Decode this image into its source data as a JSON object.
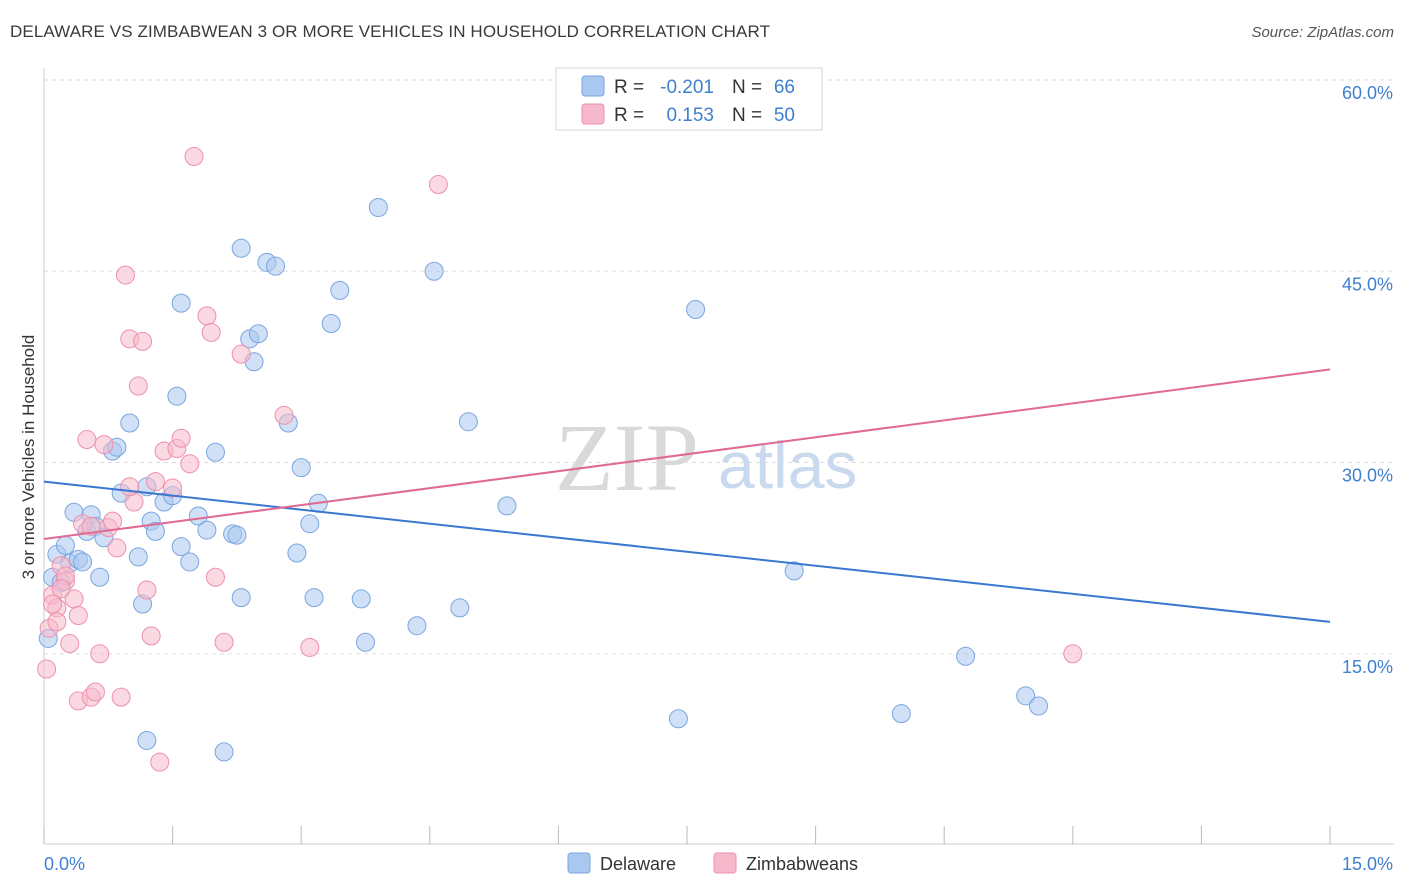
{
  "title": "DELAWARE VS ZIMBABWEAN 3 OR MORE VEHICLES IN HOUSEHOLD CORRELATION CHART",
  "source": "Source: ZipAtlas.com",
  "watermark": {
    "zip": "ZIP",
    "atlas": "atlas"
  },
  "legend": {
    "rows": [
      {
        "r_label": "R =",
        "r_value": "-0.201",
        "n_label": "N =",
        "n_value": "66",
        "color": "#a9c8f0"
      },
      {
        "r_label": "R =",
        "r_value": "0.153",
        "n_label": "N =",
        "n_value": "50",
        "color": "#f6b9cc"
      }
    ]
  },
  "chart_data": {
    "type": "scatter",
    "title": "DELAWARE VS ZIMBABWEAN 3 OR MORE VEHICLES IN HOUSEHOLD CORRELATION CHART",
    "xlabel": "",
    "ylabel": "3 or more Vehicles in Household",
    "xlim": [
      0,
      15
    ],
    "ylim": [
      0,
      62
    ],
    "x_tick_labels": [
      "0.0%",
      "15.0%"
    ],
    "y_tick_labels": [
      "15.0%",
      "30.0%",
      "45.0%",
      "60.0%"
    ],
    "y_ticks": [
      15,
      30,
      45,
      60
    ],
    "grid": true,
    "legend_position": "top-center",
    "series": [
      {
        "name": "Delaware",
        "color": "#a9c8f0",
        "stroke": "#7aa6df",
        "trend": {
          "x": [
            0,
            15
          ],
          "y": [
            28.5,
            17.5
          ],
          "color": "#3a78d0"
        },
        "points": [
          [
            0.05,
            16.2
          ],
          [
            0.1,
            21.0
          ],
          [
            0.15,
            22.8
          ],
          [
            0.2,
            20.6
          ],
          [
            0.25,
            23.5
          ],
          [
            0.3,
            22.1
          ],
          [
            0.35,
            26.1
          ],
          [
            0.4,
            22.4
          ],
          [
            0.45,
            22.2
          ],
          [
            0.5,
            24.6
          ],
          [
            0.55,
            25.9
          ],
          [
            0.6,
            25.0
          ],
          [
            0.7,
            24.1
          ],
          [
            0.8,
            30.9
          ],
          [
            0.85,
            31.2
          ],
          [
            0.9,
            27.6
          ],
          [
            1.0,
            33.1
          ],
          [
            1.1,
            22.6
          ],
          [
            1.15,
            18.9
          ],
          [
            1.2,
            28.1
          ],
          [
            1.25,
            25.4
          ],
          [
            1.3,
            24.6
          ],
          [
            1.4,
            26.9
          ],
          [
            1.5,
            27.4
          ],
          [
            1.55,
            35.2
          ],
          [
            1.6,
            23.4
          ],
          [
            1.7,
            22.2
          ],
          [
            1.8,
            25.8
          ],
          [
            1.9,
            24.7
          ],
          [
            2.0,
            30.8
          ],
          [
            2.2,
            24.4
          ],
          [
            2.25,
            24.3
          ],
          [
            2.3,
            19.4
          ],
          [
            2.4,
            39.7
          ],
          [
            2.45,
            37.9
          ],
          [
            2.5,
            40.1
          ],
          [
            2.6,
            45.7
          ],
          [
            2.7,
            45.4
          ],
          [
            2.85,
            33.1
          ],
          [
            2.95,
            22.9
          ],
          [
            3.0,
            29.6
          ],
          [
            3.1,
            25.2
          ],
          [
            3.15,
            19.4
          ],
          [
            3.2,
            26.8
          ],
          [
            3.35,
            40.9
          ],
          [
            3.45,
            43.5
          ],
          [
            3.7,
            19.3
          ],
          [
            3.75,
            15.9
          ],
          [
            3.9,
            50.0
          ],
          [
            4.35,
            17.2
          ],
          [
            4.55,
            45.0
          ],
          [
            4.85,
            18.6
          ],
          [
            4.95,
            33.2
          ],
          [
            5.4,
            26.6
          ],
          [
            7.4,
            9.9
          ],
          [
            7.6,
            42.0
          ],
          [
            8.75,
            21.5
          ],
          [
            10.0,
            10.3
          ],
          [
            10.75,
            14.8
          ],
          [
            11.45,
            11.7
          ],
          [
            11.6,
            10.9
          ],
          [
            1.6,
            42.5
          ],
          [
            1.2,
            8.2
          ],
          [
            2.1,
            7.3
          ],
          [
            2.3,
            46.8
          ],
          [
            0.65,
            21.0
          ]
        ]
      },
      {
        "name": "Zimbabweans",
        "color": "#f6b9cc",
        "stroke": "#ee90ad",
        "trend": {
          "x": [
            0,
            15
          ],
          "y": [
            24.0,
            37.3
          ],
          "color": "#e06a93"
        },
        "points": [
          [
            0.03,
            13.8
          ],
          [
            0.06,
            17.0
          ],
          [
            0.1,
            19.6
          ],
          [
            0.15,
            18.6
          ],
          [
            0.2,
            21.9
          ],
          [
            0.25,
            20.7
          ],
          [
            0.3,
            15.8
          ],
          [
            0.35,
            19.3
          ],
          [
            0.4,
            11.3
          ],
          [
            0.45,
            25.2
          ],
          [
            0.5,
            31.8
          ],
          [
            0.55,
            11.6
          ],
          [
            0.6,
            12.0
          ],
          [
            0.65,
            15.0
          ],
          [
            0.7,
            31.4
          ],
          [
            0.75,
            24.9
          ],
          [
            0.8,
            25.4
          ],
          [
            0.85,
            23.3
          ],
          [
            0.9,
            11.6
          ],
          [
            0.95,
            44.7
          ],
          [
            1.0,
            39.7
          ],
          [
            1.05,
            26.9
          ],
          [
            1.1,
            36.0
          ],
          [
            1.15,
            39.5
          ],
          [
            1.2,
            20.0
          ],
          [
            1.25,
            16.4
          ],
          [
            1.3,
            28.5
          ],
          [
            1.35,
            6.5
          ],
          [
            1.4,
            30.9
          ],
          [
            1.5,
            28.0
          ],
          [
            1.55,
            31.1
          ],
          [
            1.6,
            31.9
          ],
          [
            1.7,
            29.9
          ],
          [
            1.75,
            54.0
          ],
          [
            1.9,
            41.5
          ],
          [
            1.95,
            40.2
          ],
          [
            2.0,
            21.0
          ],
          [
            2.1,
            15.9
          ],
          [
            2.3,
            38.5
          ],
          [
            2.8,
            33.7
          ],
          [
            3.1,
            15.5
          ],
          [
            4.6,
            51.8
          ],
          [
            12.0,
            15.0
          ],
          [
            0.25,
            21.1
          ],
          [
            0.4,
            18.0
          ],
          [
            0.15,
            17.5
          ],
          [
            0.55,
            25.0
          ],
          [
            1.0,
            28.1
          ],
          [
            0.2,
            20.1
          ],
          [
            0.1,
            18.9
          ]
        ]
      }
    ]
  }
}
